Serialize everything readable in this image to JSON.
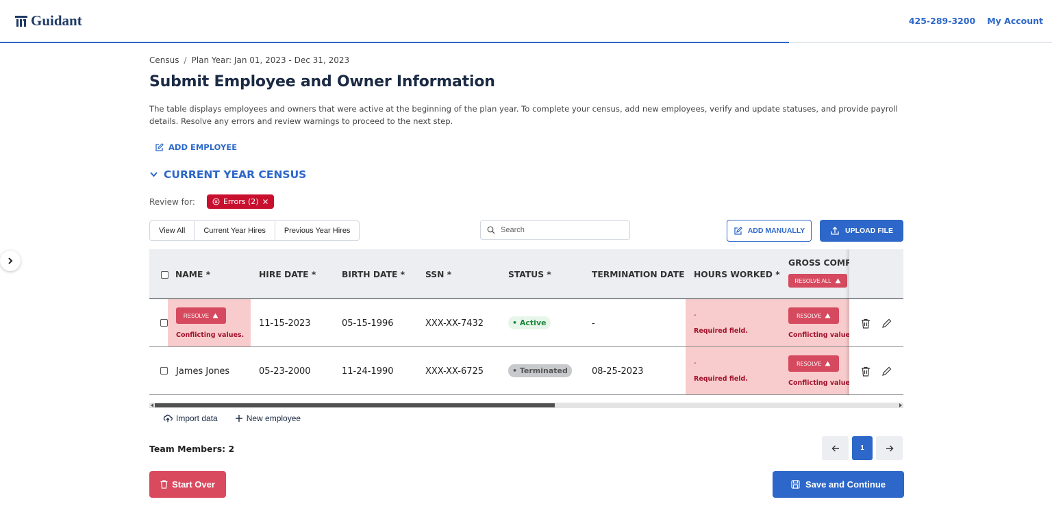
{
  "header": {
    "brand": "Guidant",
    "phone": "425-289-3200",
    "account": "My Account",
    "progress_fraction": 0.75
  },
  "breadcrumb": [
    "Census",
    "Plan Year: Jan 01, 2023 - Dec 31, 2023"
  ],
  "page": {
    "title": "Submit Employee and Owner Information",
    "description": "The table displays employees and owners that were active at the beginning of the plan year. To complete your census, add new employees, verify and update statuses, and provide payroll details. Resolve any errors and review warnings to proceed to the next step.",
    "add_employee": "ADD EMPLOYEE"
  },
  "section": {
    "title": "CURRENT YEAR CENSUS"
  },
  "review": {
    "label": "Review for:",
    "chip": "Errors (2)"
  },
  "tabs": [
    "View All",
    "Current Year Hires",
    "Previous Year Hires"
  ],
  "search": {
    "placeholder": "Search"
  },
  "actions": {
    "add_manually": "ADD MANUALLY",
    "upload_file": "UPLOAD FILE"
  },
  "table": {
    "columns": [
      "NAME *",
      "HIRE DATE *",
      "BIRTH DATE *",
      "SSN *",
      "STATUS *",
      "TERMINATION DATE",
      "HOURS WORKED *",
      "GROSS COMPE"
    ],
    "resolve_all": "RESOLVE ALL",
    "resolve": "RESOLVE",
    "rows": [
      {
        "name": "",
        "name_error": "Conflicting values.",
        "hire_date": "11-15-2023",
        "birth_date": "05-15-1996",
        "ssn": "XXX-XX-7432",
        "status": "Active",
        "termination_date": "-",
        "hours": "-",
        "hours_error": "Required field.",
        "gross_error": "Conflicting values."
      },
      {
        "name": "James Jones",
        "hire_date": "05-23-2000",
        "birth_date": "11-24-1990",
        "ssn": "XXX-XX-6725",
        "status": "Terminated",
        "termination_date": "08-25-2023",
        "hours": "-",
        "hours_error": "Required field.",
        "gross_error": "Conflicting values."
      }
    ]
  },
  "below_table": {
    "import": "Import data",
    "new_employee": "New employee"
  },
  "team": "Team Members: 2",
  "pagination": {
    "current": "1"
  },
  "buttons": {
    "start_over": "Start Over",
    "save": "Save and Continue"
  },
  "colors": {
    "primary": "#2c67c9",
    "danger": "#d94a5f",
    "error_bg": "#f8cccc"
  }
}
